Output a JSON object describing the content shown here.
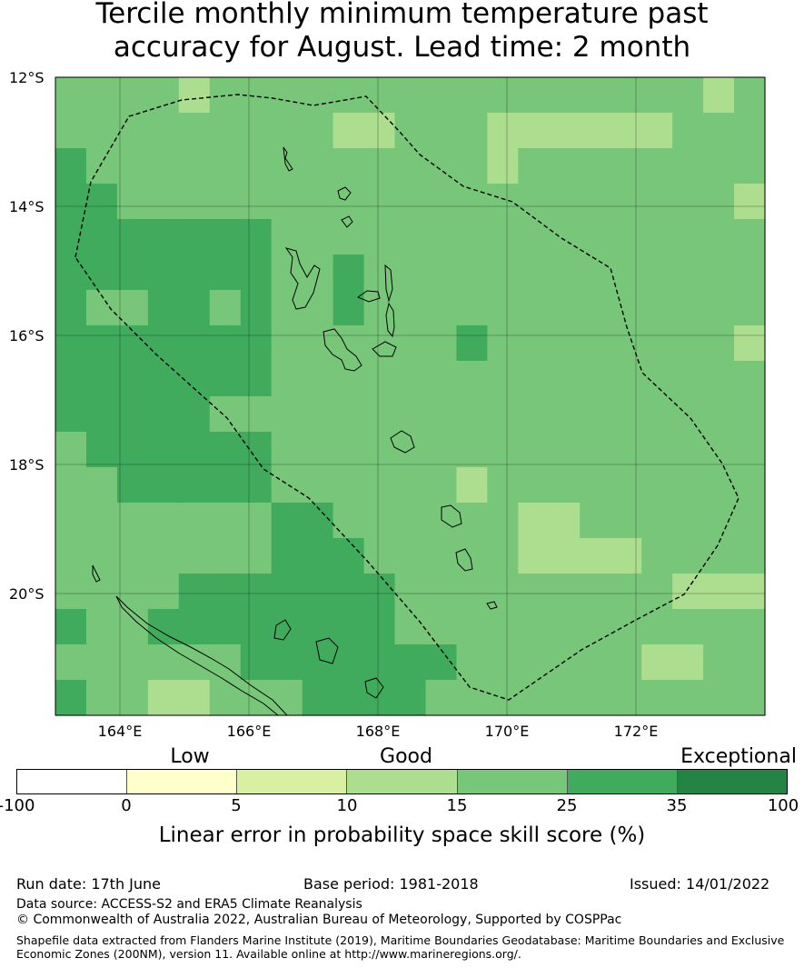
{
  "title_line1": "Tercile monthly minimum temperature past",
  "title_line2": "accuracy for August. Lead time: 2 month",
  "lat_labels": [
    "12°S",
    "14°S",
    "16°S",
    "18°S",
    "20°S"
  ],
  "lon_labels": [
    "164°E",
    "166°E",
    "168°E",
    "170°E",
    "172°E"
  ],
  "categories": [
    "Low",
    "Good",
    "Exceptional"
  ],
  "colorbar": {
    "ticks": [
      "-100",
      "0",
      "5",
      "10",
      "15",
      "25",
      "35",
      "100"
    ],
    "colors": [
      "#ffffff",
      "#ffffcc",
      "#d9f0a3",
      "#addd8e",
      "#78c679",
      "#41ab5d",
      "#238443"
    ],
    "label": "Linear error in probability space skill score (%)"
  },
  "footer": {
    "run_date": "Run date: 17th June",
    "base_period": "Base period: 1981-2018",
    "issued": "Issued: 14/01/2022",
    "data_source": "Data source: ACCESS-S2 and ERA5 Climate Reanalysis",
    "copyright": "© Commonwealth of Australia 2022, Australian Bureau of Meteorology, Supported by COSPPac",
    "shapefile": "Shapefile data extracted from Flanders Marine Institute (2019), Maritime Boundaries Geodatabase: Maritime Boundaries and Exclusive Economic Zones (200NM), version 11. Available online at http://www.marineregions.org/."
  },
  "skill_grid": {
    "legend": {
      "A": "#addd8e",
      "B": "#78c679",
      "C": "#41ab5d"
    },
    "rows": [
      "BBBBABBBBBBBBBBBBBBBBAB",
      "BBBBBBBBBAABBBAAAAAABBB",
      "CBBBBBBBBBBBBBABBBBBBBB",
      "CCBBBBBBBBBBBBBBBBBBBBA",
      "CCCCCCCBBBBBBBBBBBBBBBB",
      "CCCCCCCBBCBBBBBBBBBBBBB",
      "CBBCCBCBBCBBBBBBBBBBBBB",
      "CCCCCCCBBBBBBCBBBBBBBBA",
      "CCCCCCCBBBBBBBBBBBBBBBB",
      "CCCCCBBBBBBBBBBBBBBBBBB",
      "BCCCCCCBBBBBBBBBBBBBBBB",
      "BBCCCCCBBBBBBABBBBBBBBB",
      "BBBBBBBCCBBBBBBAABBBBBB",
      "BBBBBBBCCCBBBBBAAAABBBB",
      "BBBBCCCCCCCBBBBBBBBBAAA",
      "CBBCCCCCCCCBBBBBBBBBBBB",
      "BBBBBBCCCCCCCBBBBBBAABB",
      "CBBAABBBCCCCBBBBBBBBBBB"
    ]
  }
}
